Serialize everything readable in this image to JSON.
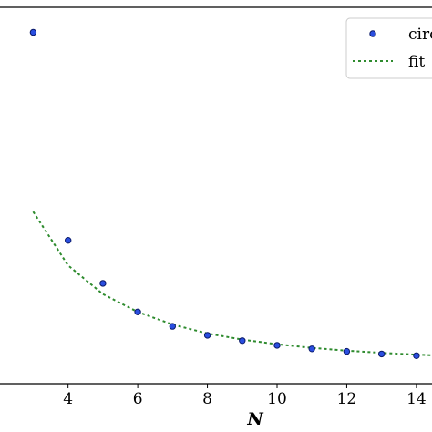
{
  "chart_data": {
    "type": "scatter",
    "xlabel": "N",
    "ylabel": "",
    "title": "",
    "xlim": [
      1.0,
      14.5
    ],
    "ylim": [
      -0.05,
      1.0
    ],
    "xticks": [
      4,
      6,
      8,
      10,
      12,
      14
    ],
    "grid": false,
    "legend_position": "top-right",
    "series": [
      {
        "name": "circ",
        "kind": "points",
        "color": "#1f3fd6",
        "x": [
          3,
          4,
          5,
          6,
          7,
          8,
          9,
          10,
          11,
          12,
          13,
          14
        ],
        "y": [
          0.93,
          0.35,
          0.23,
          0.15,
          0.11,
          0.085,
          0.07,
          0.057,
          0.047,
          0.04,
          0.033,
          0.028
        ]
      },
      {
        "name": "fit",
        "kind": "dashed-line",
        "color": "#2e8b2e",
        "x": [
          3,
          4,
          5,
          6,
          7,
          8,
          9,
          10,
          11,
          12,
          13,
          14,
          14.5
        ],
        "y": [
          0.43,
          0.28,
          0.2,
          0.15,
          0.115,
          0.09,
          0.073,
          0.06,
          0.05,
          0.042,
          0.036,
          0.031,
          0.029
        ]
      }
    ]
  }
}
